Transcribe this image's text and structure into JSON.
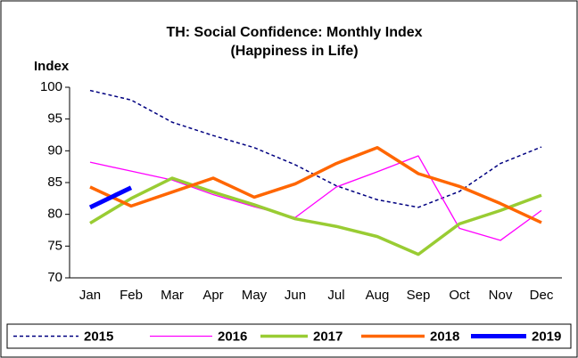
{
  "chart_data": {
    "type": "line",
    "title": "TH: Social Confidence: Monthly Index",
    "subtitle": "(Happiness in Life)",
    "y_label": "Index",
    "categories": [
      "Jan",
      "Feb",
      "Mar",
      "Apr",
      "May",
      "Jun",
      "Jul",
      "Aug",
      "Sep",
      "Oct",
      "Nov",
      "Dec"
    ],
    "ylim": [
      70,
      100
    ],
    "yticks": [
      70,
      75,
      80,
      85,
      90,
      95,
      100
    ],
    "grid": false,
    "legend": "bottom",
    "series": [
      {
        "name": "2015",
        "color": "#000080",
        "dashed": true,
        "width": 1.5,
        "values": [
          99.5,
          98,
          94.5,
          92.4,
          90.5,
          87.8,
          84.5,
          82.3,
          81.1,
          83.6,
          88,
          90.6
        ]
      },
      {
        "name": "2016",
        "color": "#ff00ff",
        "dashed": false,
        "width": 1.3,
        "values": [
          88.2,
          86.8,
          85.4,
          83.1,
          81.2,
          79.5,
          84.3,
          86.7,
          89.2,
          77.8,
          75.9,
          80.6
        ]
      },
      {
        "name": "2017",
        "color": "#99cc33",
        "dashed": false,
        "width": 3.5,
        "values": [
          78.6,
          82.5,
          85.7,
          83.5,
          81.5,
          79.3,
          78.1,
          76.5,
          73.7,
          78.5,
          80.6,
          83
        ]
      },
      {
        "name": "2018",
        "color": "#ff6600",
        "dashed": false,
        "width": 3.5,
        "values": [
          84.3,
          81.3,
          83.5,
          85.7,
          82.7,
          84.8,
          88,
          90.5,
          86.4,
          84.4,
          81.7,
          78.7
        ]
      },
      {
        "name": "2019",
        "color": "#0000ff",
        "dashed": false,
        "width": 5,
        "values": [
          81.1,
          84.2,
          null,
          null,
          null,
          null,
          null,
          null,
          null,
          null,
          null,
          null
        ]
      }
    ]
  }
}
